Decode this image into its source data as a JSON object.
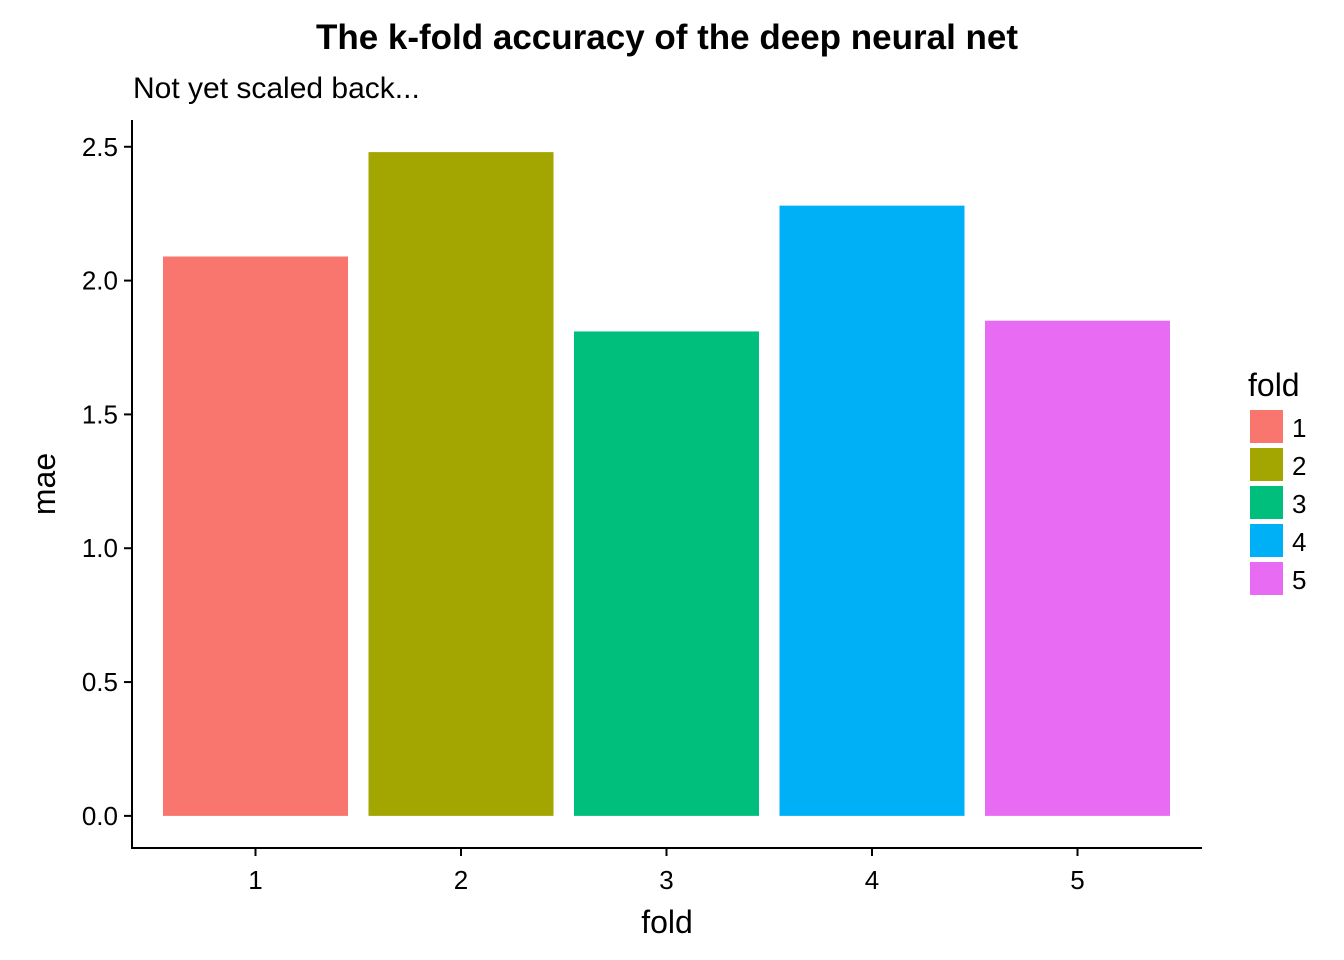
{
  "chart_data": {
    "type": "bar",
    "title": "The k-fold accuracy of the deep neural net",
    "subtitle": "Not yet scaled back...",
    "xlabel": "fold",
    "ylabel": "mae",
    "categories": [
      "1",
      "2",
      "3",
      "4",
      "5"
    ],
    "values": [
      2.09,
      2.48,
      1.81,
      2.28,
      1.85
    ],
    "colors": [
      "#F8766D",
      "#A3A500",
      "#00BF7D",
      "#00B0F6",
      "#E76BF3"
    ],
    "ylim": [
      -0.12,
      2.6
    ],
    "yticks": [
      0.0,
      0.5,
      1.0,
      1.5,
      2.0,
      2.5
    ],
    "ytick_labels": [
      "0.0",
      "0.5",
      "1.0",
      "1.5",
      "2.0",
      "2.5"
    ],
    "grid": false,
    "legend": {
      "title": "fold",
      "position": "right",
      "entries": [
        "1",
        "2",
        "3",
        "4",
        "5"
      ]
    }
  }
}
